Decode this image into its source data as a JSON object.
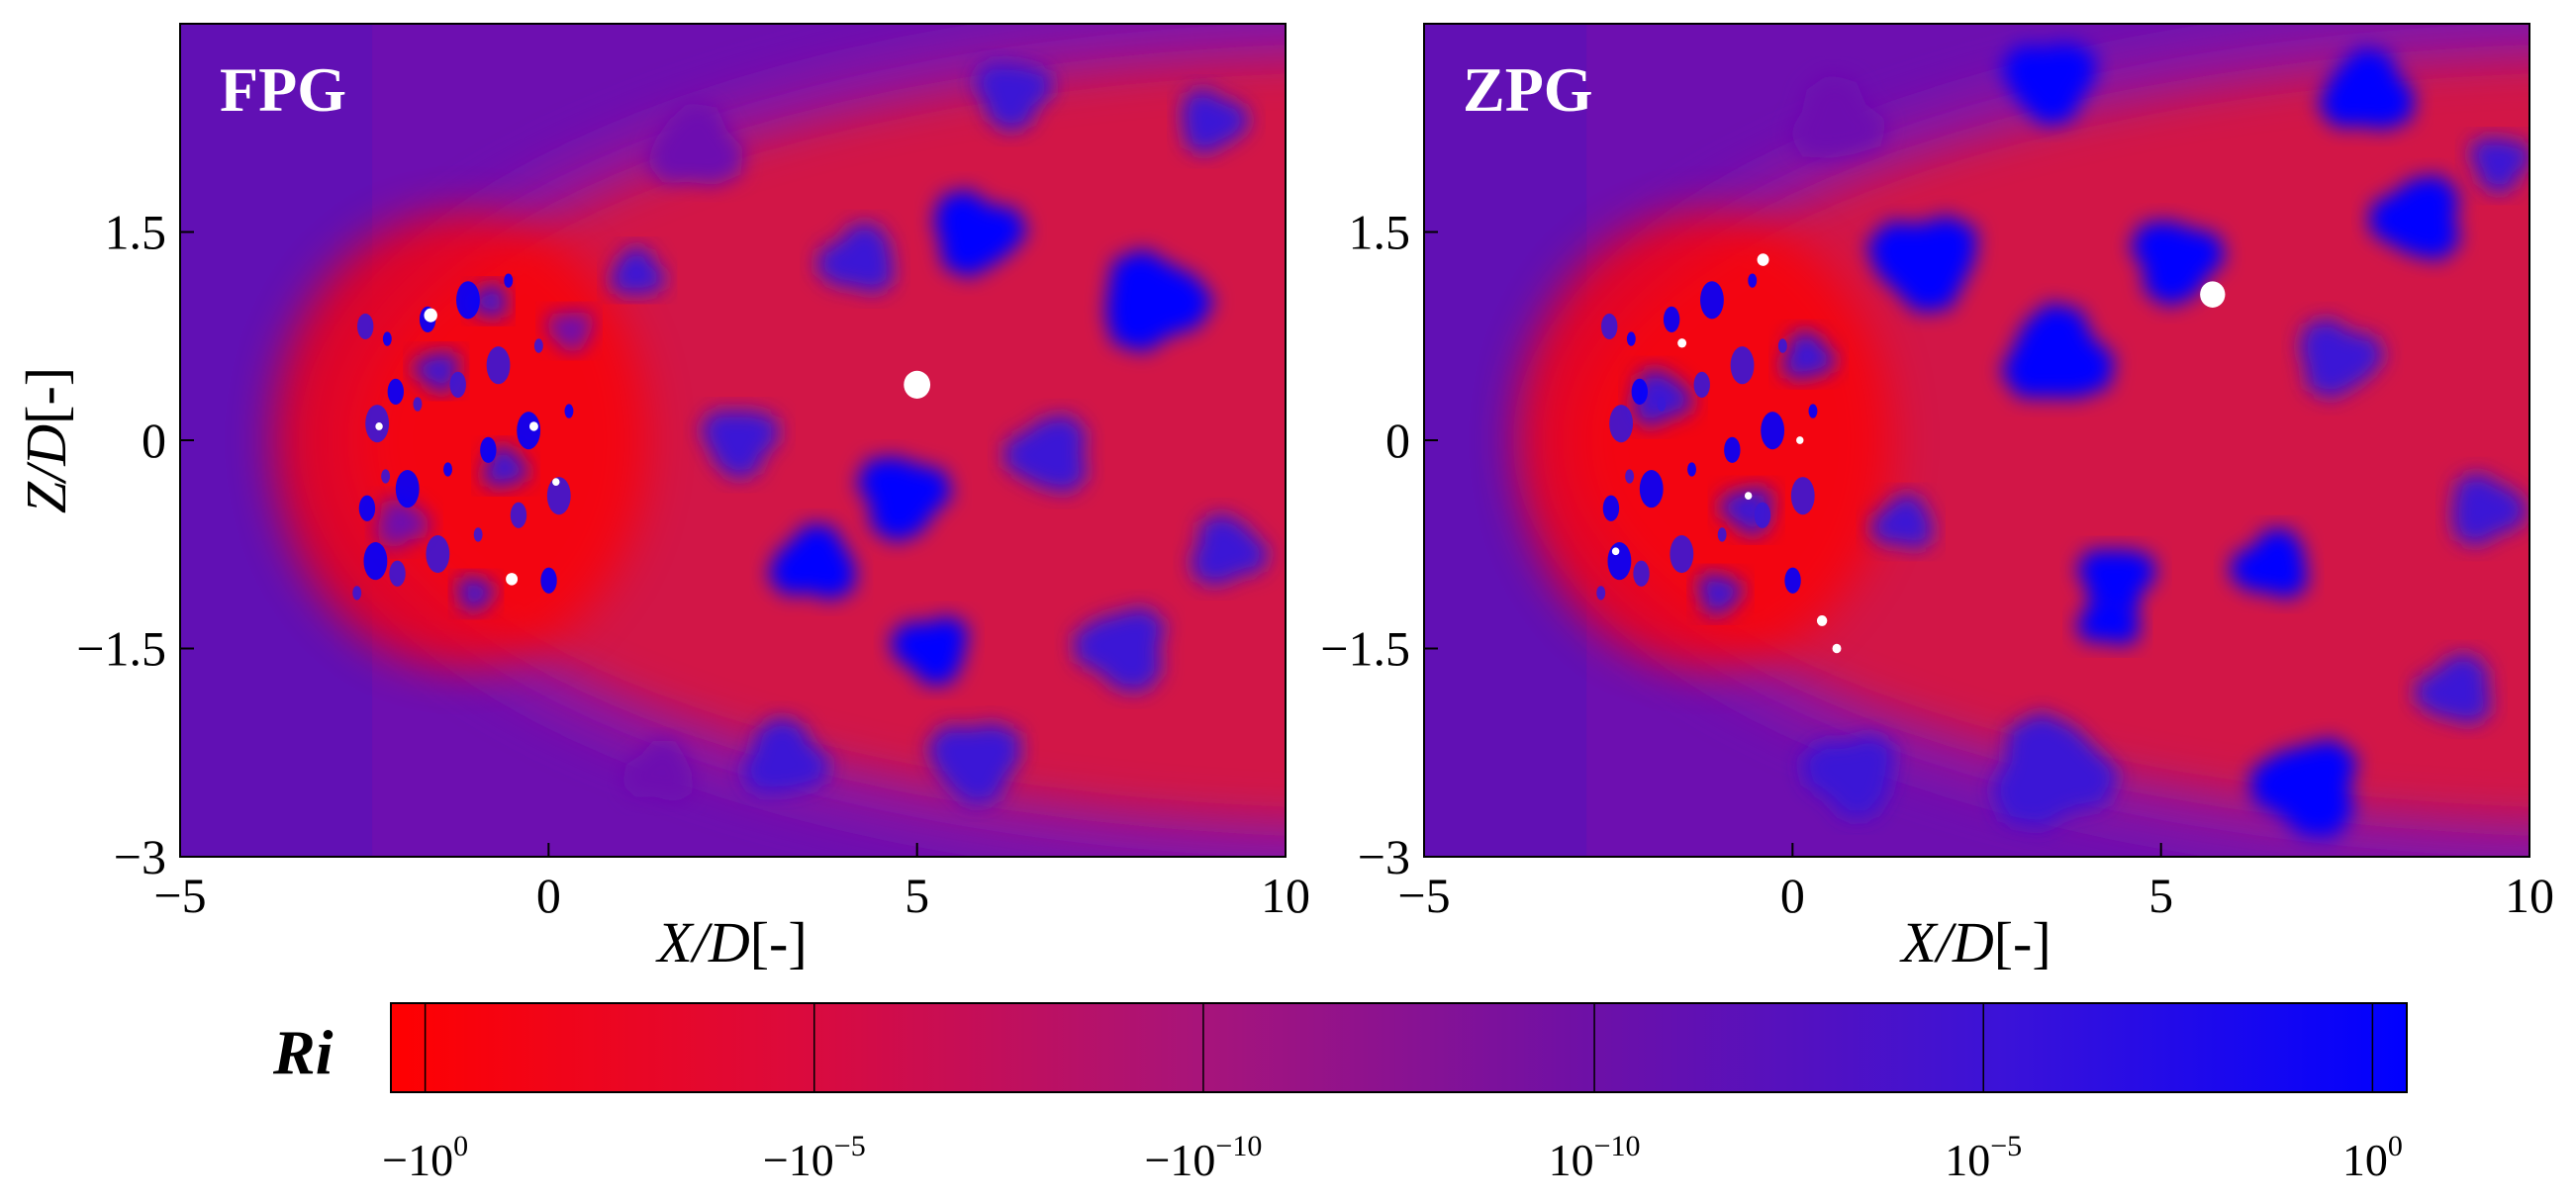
{
  "colors": {
    "neg_max": "#ff0000",
    "neg_mid": "#d21246",
    "mid_neg": "#8c14a0",
    "mid_pos": "#6d0fb0",
    "pos_mid": "#3a17d6",
    "pos_max": "#0000ff",
    "hole": "#ffffff"
  },
  "chart_data": [
    {
      "type": "heatmap",
      "title": "FPG",
      "xlabel": "X/D[-]",
      "ylabel": "Z/D[-]",
      "xlim": [
        -5,
        10
      ],
      "ylim": [
        -3,
        3
      ],
      "xticks": [
        -5,
        0,
        5,
        10
      ],
      "xtick_labels": [
        "−5",
        "0",
        "5",
        "10"
      ],
      "yticks": [
        -3,
        -1.5,
        0,
        1.5
      ],
      "ytick_labels": [
        "−3",
        "−1.5",
        "0",
        "1.5"
      ],
      "field": "Ri",
      "bow_front_x": -3.2,
      "blobs": [
        {
          "x": -2.0,
          "y": -0.6,
          "r": 0.35,
          "s": 0.8
        },
        {
          "x": -1.5,
          "y": 0.5,
          "r": 0.3,
          "s": 0.9
        },
        {
          "x": -0.6,
          "y": -0.2,
          "r": 0.3,
          "s": 0.85
        },
        {
          "x": 0.3,
          "y": 0.8,
          "r": 0.3,
          "s": 0.8
        },
        {
          "x": 1.2,
          "y": 1.2,
          "r": 0.35,
          "s": 0.9
        },
        {
          "x": 2.6,
          "y": 0.0,
          "r": 0.5,
          "s": 0.9
        },
        {
          "x": 3.6,
          "y": -0.9,
          "r": 0.55,
          "s": 0.95
        },
        {
          "x": 4.8,
          "y": -0.4,
          "r": 0.6,
          "s": 1.0
        },
        {
          "x": 4.2,
          "y": 1.3,
          "r": 0.5,
          "s": 0.85
        },
        {
          "x": 5.8,
          "y": 1.5,
          "r": 0.6,
          "s": 0.95
        },
        {
          "x": 6.8,
          "y": -0.1,
          "r": 0.55,
          "s": 0.9
        },
        {
          "x": 8.2,
          "y": 1.0,
          "r": 0.7,
          "s": 0.95
        },
        {
          "x": 7.8,
          "y": -1.5,
          "r": 0.6,
          "s": 0.9
        },
        {
          "x": 9.2,
          "y": -0.8,
          "r": 0.5,
          "s": 0.85
        },
        {
          "x": 5.2,
          "y": -1.5,
          "r": 0.5,
          "s": 0.95
        },
        {
          "x": 3.2,
          "y": -2.3,
          "r": 0.55,
          "s": 0.9
        },
        {
          "x": 5.8,
          "y": -2.3,
          "r": 0.6,
          "s": 0.9
        },
        {
          "x": 2.0,
          "y": 2.1,
          "r": 0.6,
          "s": 0.8
        },
        {
          "x": 6.3,
          "y": 2.5,
          "r": 0.5,
          "s": 0.9
        },
        {
          "x": 1.5,
          "y": -2.4,
          "r": 0.45,
          "s": 0.8
        },
        {
          "x": -1.0,
          "y": -1.1,
          "r": 0.25,
          "s": 0.9
        },
        {
          "x": -0.8,
          "y": 1.0,
          "r": 0.25,
          "s": 0.85
        },
        {
          "x": 9.0,
          "y": 2.3,
          "r": 0.45,
          "s": 0.85
        }
      ],
      "holes": [
        {
          "x": 5.0,
          "y": 0.4,
          "r": 0.18
        },
        {
          "x": -1.6,
          "y": 0.9,
          "r": 0.09
        },
        {
          "x": -0.2,
          "y": 0.1,
          "r": 0.06
        },
        {
          "x": 0.1,
          "y": -0.3,
          "r": 0.05
        },
        {
          "x": -0.5,
          "y": -1.0,
          "r": 0.08
        },
        {
          "x": -2.3,
          "y": 0.1,
          "r": 0.05
        }
      ]
    },
    {
      "type": "heatmap",
      "title": "ZPG",
      "xlabel": "X/D[-]",
      "ylabel": "",
      "xlim": [
        -5,
        10
      ],
      "ylim": [
        -3,
        3
      ],
      "xticks": [
        -5,
        0,
        5,
        10
      ],
      "xtick_labels": [
        "−5",
        "0",
        "5",
        "10"
      ],
      "yticks": [
        -3,
        -1.5,
        0,
        1.5
      ],
      "ytick_labels": [
        "−3",
        "−1.5",
        "0",
        "1.5"
      ],
      "field": "Ri",
      "bow_front_x": -3.6,
      "blobs": [
        {
          "x": -1.8,
          "y": 0.3,
          "r": 0.4,
          "s": 0.9
        },
        {
          "x": -0.6,
          "y": -0.5,
          "r": 0.35,
          "s": 0.85
        },
        {
          "x": 0.2,
          "y": 0.6,
          "r": 0.35,
          "s": 0.9
        },
        {
          "x": 1.8,
          "y": 1.3,
          "r": 0.7,
          "s": 1.0
        },
        {
          "x": 3.6,
          "y": 0.6,
          "r": 0.7,
          "s": 0.95
        },
        {
          "x": 4.4,
          "y": -1.0,
          "r": 0.5,
          "s": 1.0
        },
        {
          "x": 4.3,
          "y": -1.3,
          "r": 0.4,
          "s": 1.0
        },
        {
          "x": 5.2,
          "y": 1.3,
          "r": 0.6,
          "s": 1.0
        },
        {
          "x": 6.5,
          "y": -0.9,
          "r": 0.5,
          "s": 0.95
        },
        {
          "x": 7.4,
          "y": 0.6,
          "r": 0.55,
          "s": 0.9
        },
        {
          "x": 8.5,
          "y": 1.6,
          "r": 0.6,
          "s": 0.95
        },
        {
          "x": 9.4,
          "y": -0.5,
          "r": 0.5,
          "s": 0.9
        },
        {
          "x": 7.0,
          "y": -2.5,
          "r": 0.7,
          "s": 0.95
        },
        {
          "x": 3.5,
          "y": -2.4,
          "r": 0.8,
          "s": 0.9
        },
        {
          "x": 0.8,
          "y": -2.4,
          "r": 0.6,
          "s": 0.85
        },
        {
          "x": 0.6,
          "y": 2.3,
          "r": 0.6,
          "s": 0.8
        },
        {
          "x": 3.5,
          "y": 2.6,
          "r": 0.6,
          "s": 0.95
        },
        {
          "x": 7.8,
          "y": 2.5,
          "r": 0.6,
          "s": 0.95
        },
        {
          "x": 9.6,
          "y": 2.0,
          "r": 0.4,
          "s": 0.85
        },
        {
          "x": 1.5,
          "y": -0.6,
          "r": 0.4,
          "s": 0.85
        },
        {
          "x": -1.0,
          "y": -1.1,
          "r": 0.3,
          "s": 0.9
        },
        {
          "x": 9.0,
          "y": -1.8,
          "r": 0.5,
          "s": 0.9
        }
      ],
      "holes": [
        {
          "x": 5.7,
          "y": 1.05,
          "r": 0.17
        },
        {
          "x": -0.4,
          "y": 1.3,
          "r": 0.08
        },
        {
          "x": -1.5,
          "y": 0.7,
          "r": 0.06
        },
        {
          "x": 0.4,
          "y": -1.3,
          "r": 0.07
        },
        {
          "x": 0.6,
          "y": -1.5,
          "r": 0.06
        },
        {
          "x": -2.4,
          "y": -0.8,
          "r": 0.05
        },
        {
          "x": -0.6,
          "y": -0.4,
          "r": 0.05
        },
        {
          "x": 0.1,
          "y": 0.0,
          "r": 0.05
        }
      ]
    }
  ],
  "colorbar": {
    "title": "Ri",
    "labels": [
      {
        "base": "−10",
        "exp": "0"
      },
      {
        "base": "−10",
        "exp": "−5"
      },
      {
        "base": "−10",
        "exp": "−10"
      },
      {
        "base": "10",
        "exp": "−10"
      },
      {
        "base": "10",
        "exp": "−5"
      },
      {
        "base": "10",
        "exp": "0"
      }
    ]
  }
}
